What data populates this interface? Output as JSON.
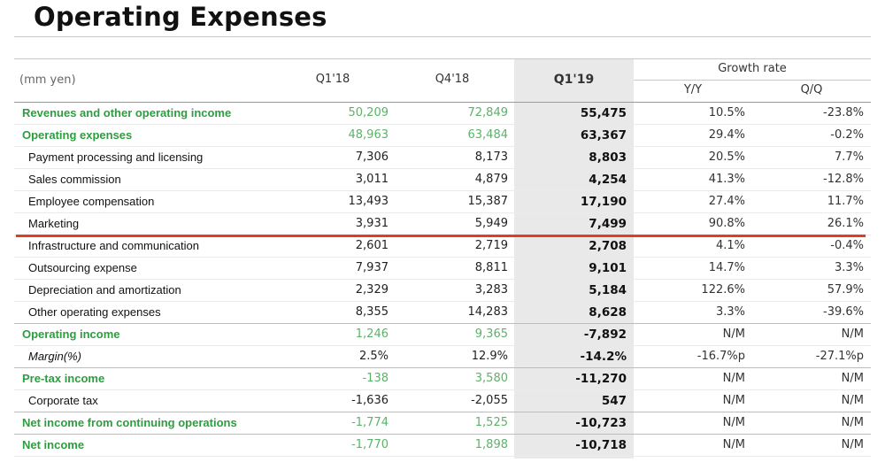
{
  "title": "Operating Expenses",
  "header": {
    "unit": "(mm yen)",
    "q1_18": "Q1'18",
    "q4_18": "Q4'18",
    "q1_19": "Q1'19",
    "growth": "Growth rate",
    "yy": "Y/Y",
    "qq": "Q/Q"
  },
  "accent_colors": {
    "green": "#2e9d3f",
    "red_line": "#e23d1e"
  },
  "rows": [
    {
      "label": "Revenues and other operating income",
      "q1_18": "50,209",
      "q4_18": "72,849",
      "q1_19": "55,475",
      "yy": "10.5%",
      "qq": "-23.8%"
    },
    {
      "label": "Operating expenses",
      "q1_18": "48,963",
      "q4_18": "63,484",
      "q1_19": "63,367",
      "yy": "29.4%",
      "qq": "-0.2%"
    },
    {
      "label": "Payment processing and licensing",
      "q1_18": "7,306",
      "q4_18": "8,173",
      "q1_19": "8,803",
      "yy": "20.5%",
      "qq": "7.7%"
    },
    {
      "label": "Sales commission",
      "q1_18": "3,011",
      "q4_18": "4,879",
      "q1_19": "4,254",
      "yy": "41.3%",
      "qq": "-12.8%"
    },
    {
      "label": "Employee compensation",
      "q1_18": "13,493",
      "q4_18": "15,387",
      "q1_19": "17,190",
      "yy": "27.4%",
      "qq": "11.7%"
    },
    {
      "label": "Marketing",
      "q1_18": "3,931",
      "q4_18": "5,949",
      "q1_19": "7,499",
      "yy": "90.8%",
      "qq": "26.1%"
    },
    {
      "label": "Infrastructure and communication",
      "q1_18": "2,601",
      "q4_18": "2,719",
      "q1_19": "2,708",
      "yy": "4.1%",
      "qq": "-0.4%"
    },
    {
      "label": "Outsourcing expense",
      "q1_18": "7,937",
      "q4_18": "8,811",
      "q1_19": "9,101",
      "yy": "14.7%",
      "qq": "3.3%"
    },
    {
      "label": "Depreciation and amortization",
      "q1_18": "2,329",
      "q4_18": "3,283",
      "q1_19": "5,184",
      "yy": "122.6%",
      "qq": "57.9%"
    },
    {
      "label": "Other operating expenses",
      "q1_18": "8,355",
      "q4_18": "14,283",
      "q1_19": "8,628",
      "yy": "3.3%",
      "qq": "-39.6%"
    },
    {
      "label": "Operating income",
      "q1_18": "1,246",
      "q4_18": "9,365",
      "q1_19": "-7,892",
      "yy": "N/M",
      "qq": "N/M"
    },
    {
      "label": "Margin(%)",
      "q1_18": "2.5%",
      "q4_18": "12.9%",
      "q1_19": "-14.2%",
      "yy": "-16.7%p",
      "qq": "-27.1%p"
    },
    {
      "label": "Pre-tax income",
      "q1_18": "-138",
      "q4_18": "3,580",
      "q1_19": "-11,270",
      "yy": "N/M",
      "qq": "N/M"
    },
    {
      "label": "Corporate tax",
      "q1_18": "-1,636",
      "q4_18": "-2,055",
      "q1_19": "547",
      "yy": "N/M",
      "qq": "N/M"
    },
    {
      "label": "Net income from continuing operations",
      "q1_18": "-1,774",
      "q4_18": "1,525",
      "q1_19": "-10,723",
      "yy": "N/M",
      "qq": "N/M"
    },
    {
      "label": "Net income",
      "q1_18": "-1,770",
      "q4_18": "1,898",
      "q1_19": "-10,718",
      "yy": "N/M",
      "qq": "N/M"
    }
  ]
}
